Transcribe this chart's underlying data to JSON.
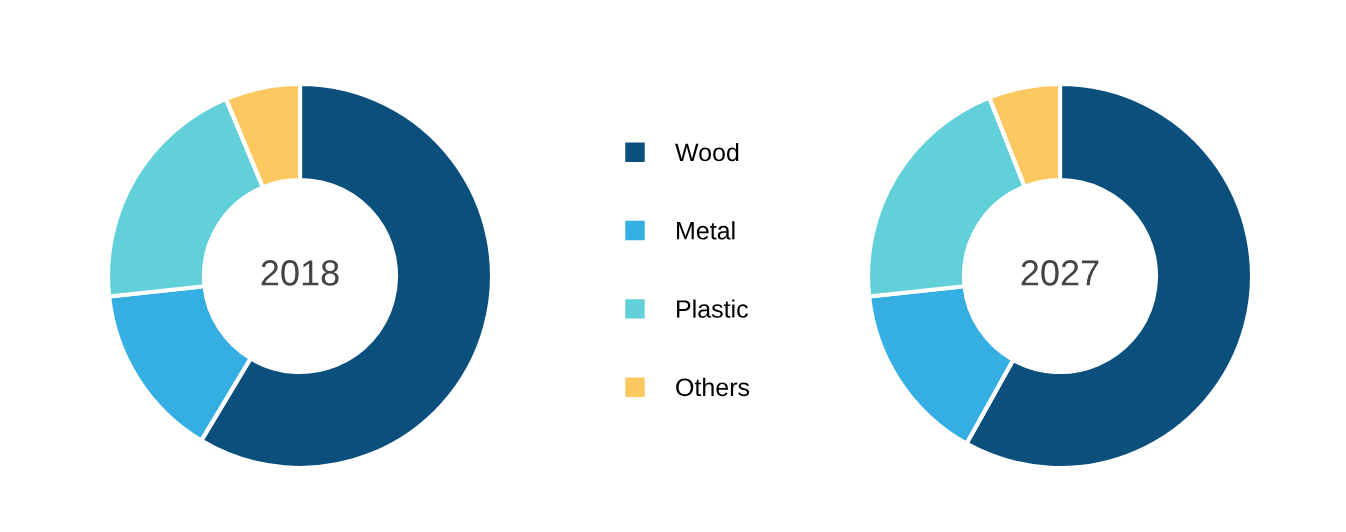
{
  "chart_data": [
    {
      "type": "donut",
      "title": "2018",
      "categories": [
        "Wood",
        "Metal",
        "Plastic",
        "Others"
      ],
      "values": [
        58.6,
        14.7,
        20.4,
        6.3
      ],
      "colors": [
        "#0b507d",
        "#35aee2",
        "#62d0d8",
        "#fdc85f"
      ],
      "legend": "right"
    },
    {
      "type": "donut",
      "title": "2027",
      "categories": [
        null,
        null,
        null,
        null
      ],
      "values": [
        58.1,
        15.2,
        20.7,
        6.0
      ],
      "colors": [
        "#0b507d",
        "#35aee2",
        "#62d0d8",
        "#fdc85f"
      ]
    }
  ]
}
